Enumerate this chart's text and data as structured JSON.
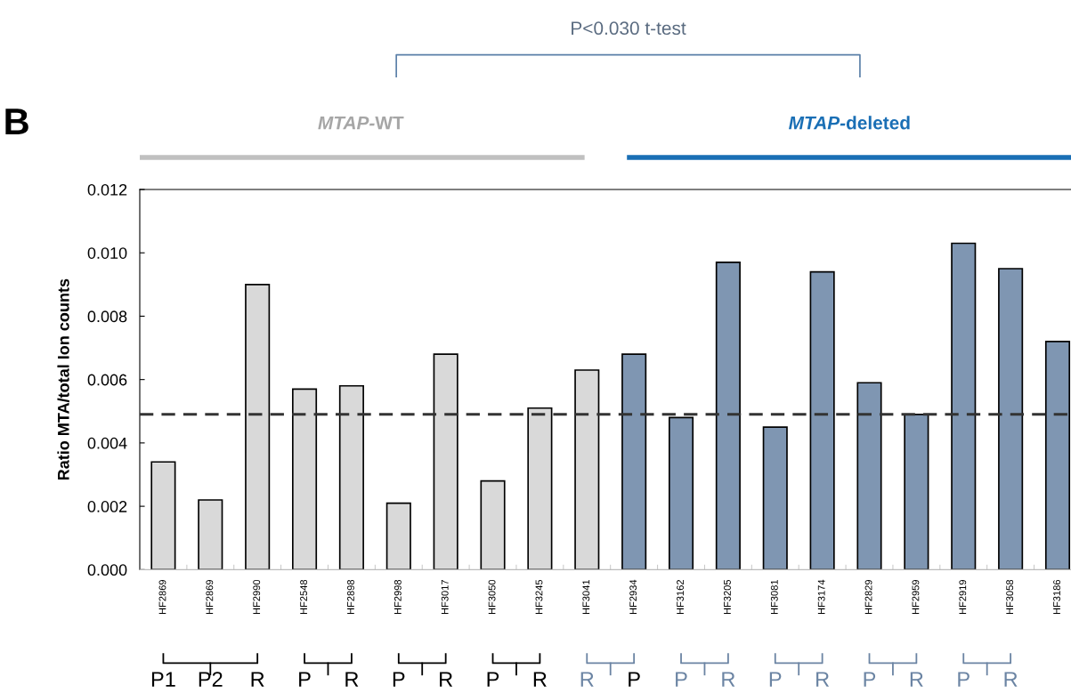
{
  "chart_data": {
    "type": "bar",
    "ylabel": "Ratio MTA/total Ion counts",
    "categories": [
      "HF2869",
      "HF2869",
      "HF2990",
      "HF2548",
      "HF2898",
      "HF2998",
      "HF3017",
      "HF3050",
      "HF3245",
      "HF3041",
      "HF2934",
      "HF3162",
      "HF3205",
      "HF3081",
      "HF3174",
      "HF2829",
      "HF2959",
      "HF2919",
      "HF3058",
      "HF3186"
    ],
    "values": [
      0.0034,
      0.0022,
      0.009,
      0.0057,
      0.0058,
      0.0021,
      0.0068,
      0.0028,
      0.0051,
      0.0063,
      0.0068,
      0.0048,
      0.0097,
      0.0045,
      0.0094,
      0.0059,
      0.0049,
      0.0103,
      0.0095,
      0.0072
    ],
    "colors": [
      "#d9d9d9",
      "#d9d9d9",
      "#d9d9d9",
      "#d9d9d9",
      "#d9d9d9",
      "#d9d9d9",
      "#d9d9d9",
      "#d9d9d9",
      "#d9d9d9",
      "#d9d9d9",
      "#7f96b2",
      "#7f96b2",
      "#7f96b2",
      "#7f96b2",
      "#7f96b2",
      "#7f96b2",
      "#7f96b2",
      "#7f96b2",
      "#7f96b2",
      "#7f96b2"
    ],
    "ylim": [
      0,
      0.012
    ],
    "yticks": [
      {
        "value": 0,
        "label": "0.000"
      },
      {
        "value": 0.002,
        "label": "0.002"
      },
      {
        "value": 0.004,
        "label": "0.004"
      },
      {
        "value": 0.006,
        "label": "0.006"
      },
      {
        "value": 0.008,
        "label": "0.008"
      },
      {
        "value": 0.01,
        "label": "0.010"
      },
      {
        "value": 0.012,
        "label": "0.012"
      }
    ],
    "ref_lines": [
      {
        "axis": "y",
        "value": 0.0049,
        "color": "#333333",
        "line_style": "dashed"
      }
    ],
    "grid": false,
    "legend": false,
    "annotations": [
      "B",
      "MTAP-WT",
      "MTAP-deleted",
      "P<0.030 t-test",
      "P1",
      "P2",
      "R",
      "P",
      "R",
      "P",
      "R",
      "P",
      "R",
      "R",
      "P",
      "P",
      "R",
      "P",
      "R",
      "P",
      "R",
      "P",
      "R"
    ]
  }
}
